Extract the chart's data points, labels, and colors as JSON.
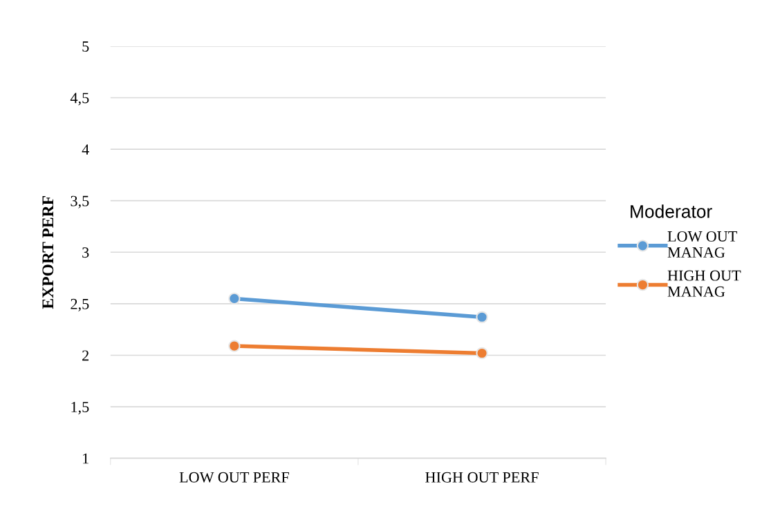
{
  "chart_data": {
    "type": "line",
    "ylabel": "EXPORT PERF",
    "legend_title": "Moderator",
    "categories": [
      "LOW OUT PERF",
      "HIGH OUT PERF"
    ],
    "series": [
      {
        "name": "LOW OUT MANAG",
        "color": "#5b9bd5",
        "values": [
          2.55,
          2.37
        ]
      },
      {
        "name": "HIGH OUT MANAG",
        "color": "#ed7d31",
        "values": [
          2.09,
          2.02
        ]
      }
    ],
    "ylim": [
      1,
      5
    ],
    "yticks": [
      1,
      {
        "value": 1.5,
        "label": "1,5"
      },
      2,
      {
        "value": 2.5,
        "label": "2,5"
      },
      3,
      {
        "value": 3.5,
        "label": "3,5"
      },
      4,
      {
        "value": 4.5,
        "label": "4,5"
      },
      5
    ],
    "grid": "y",
    "legend": "right",
    "marker": "circle",
    "line_style": "solid"
  }
}
